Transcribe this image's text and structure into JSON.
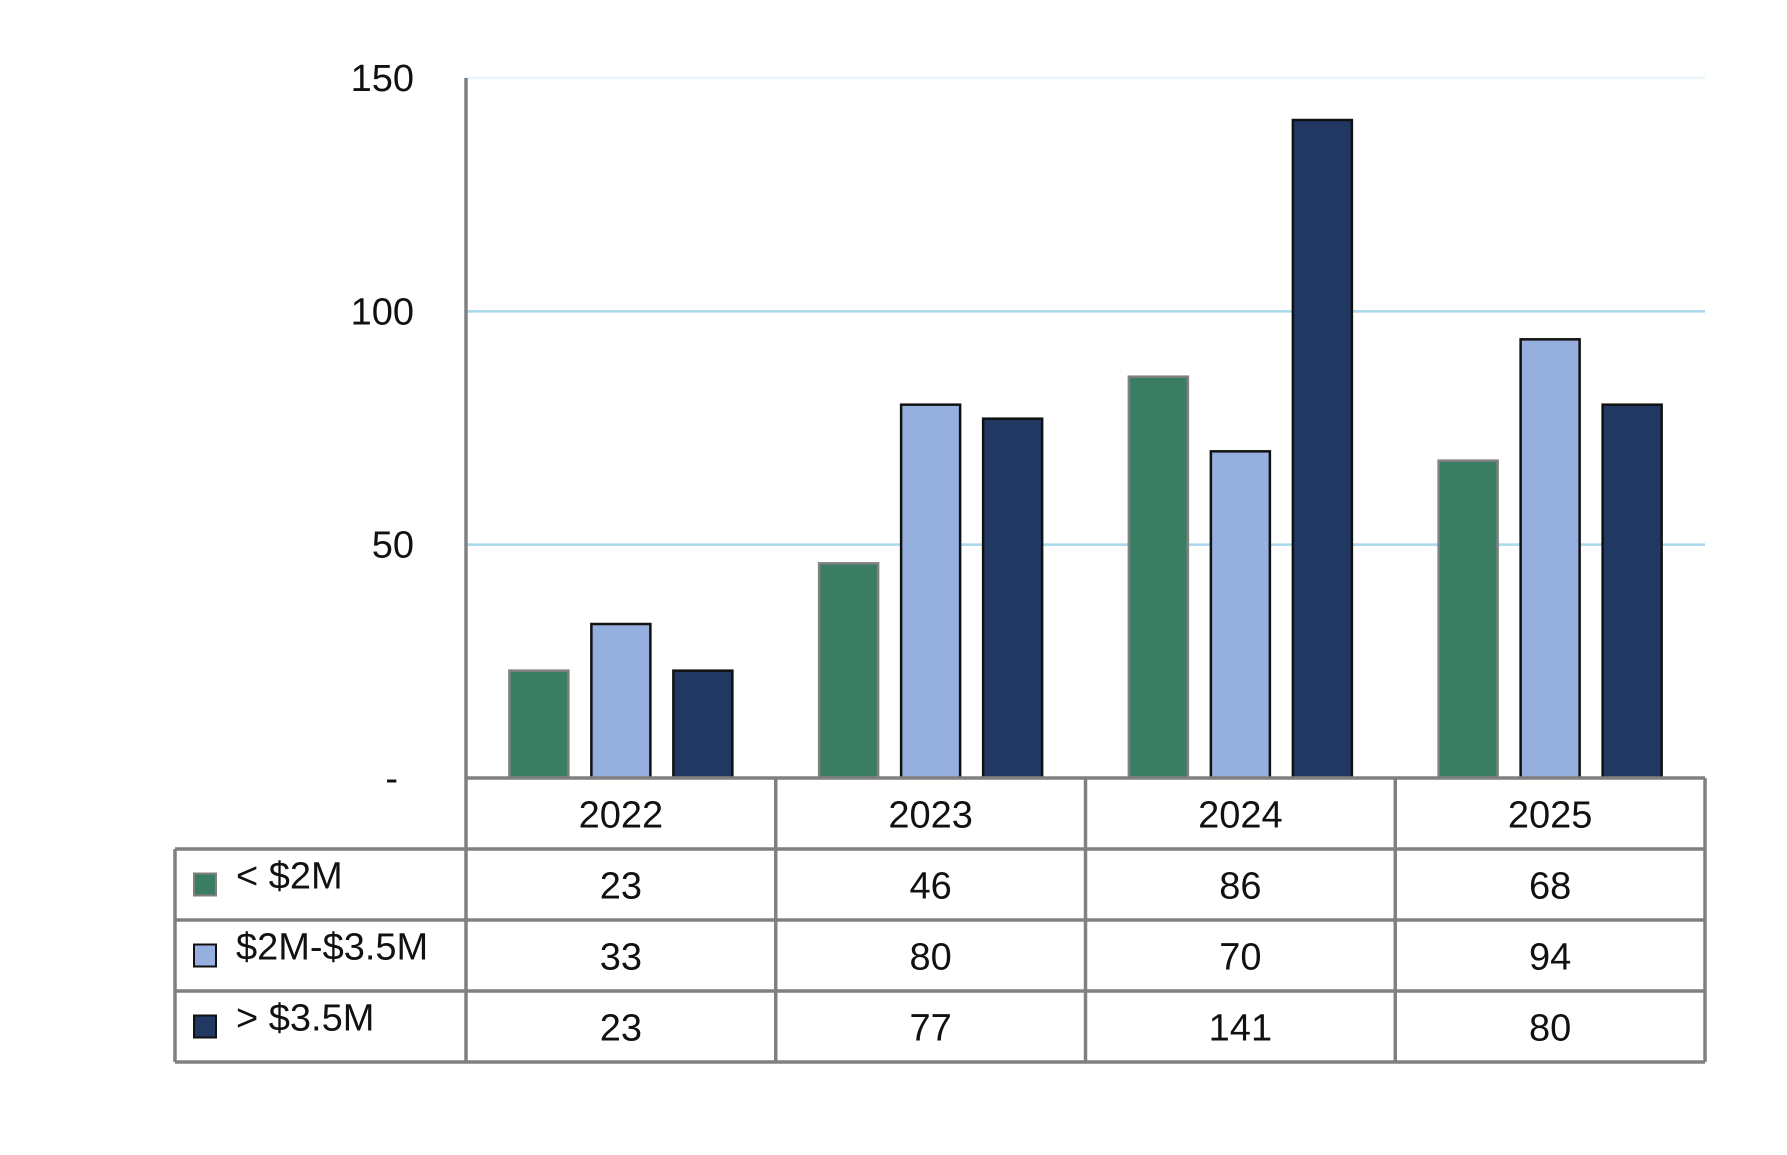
{
  "chart_data": {
    "type": "bar",
    "categories": [
      "2022",
      "2023",
      "2024",
      "2025"
    ],
    "series": [
      {
        "name": "< $2M",
        "values": [
          23,
          46,
          86,
          68
        ],
        "color": "#3a7d62",
        "stroke": "#808080"
      },
      {
        "name": "$2M-$3.5M",
        "values": [
          33,
          80,
          70,
          94
        ],
        "color": "#95b0de",
        "stroke": "#111111"
      },
      {
        "name": "> $3.5M",
        "values": [
          23,
          77,
          141,
          80
        ],
        "color": "#213862",
        "stroke": "#111111"
      }
    ],
    "y_ticks": [
      {
        "value": 0,
        "label": "-"
      },
      {
        "value": 50,
        "label": "50"
      },
      {
        "value": 100,
        "label": "100"
      },
      {
        "value": 150,
        "label": "150"
      }
    ],
    "ylim": [
      0,
      150
    ],
    "grid": true,
    "gridline_color": "#a8d8ea",
    "data_table": true,
    "title": "",
    "xlabel": "",
    "ylabel": ""
  }
}
